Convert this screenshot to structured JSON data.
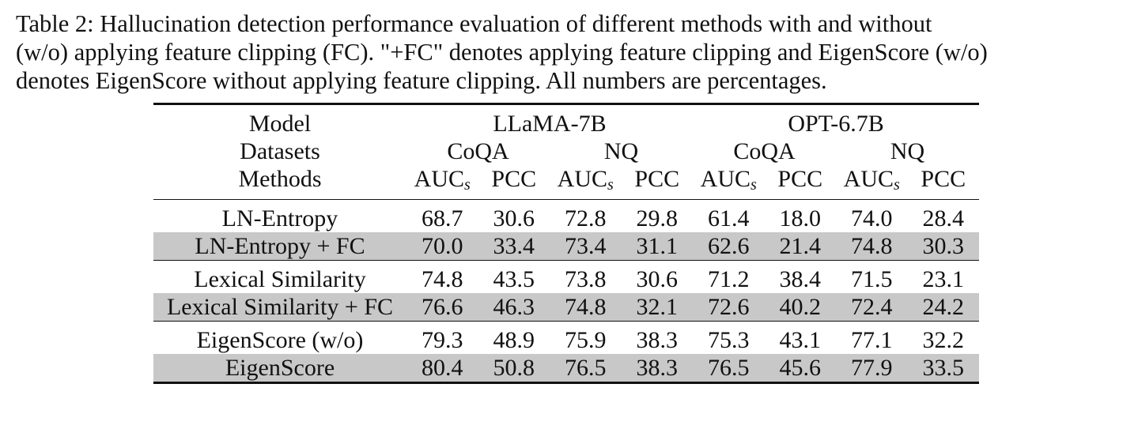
{
  "caption": {
    "line1": "Table 2:  Hallucination detection performance evaluation of different methods with and without",
    "line2": "(w/o) applying feature clipping (FC). \"+FC\" denotes applying feature clipping and EigenScore (w/o)",
    "line3": "denotes EigenScore without applying feature clipping. All numbers are percentages."
  },
  "header": {
    "model_label": "Model",
    "datasets_label": "Datasets",
    "methods_label": "Methods",
    "models": [
      "LLaMA-7B",
      "OPT-6.7B"
    ],
    "datasets": [
      "CoQA",
      "NQ",
      "CoQA",
      "NQ"
    ],
    "metric_auc": "AUC",
    "metric_auc_sub": "s",
    "metric_pcc": "PCC"
  },
  "rows": [
    {
      "method": "LN-Entropy",
      "shaded": false,
      "values": [
        "68.7",
        "30.6",
        "72.8",
        "29.8",
        "61.4",
        "18.0",
        "74.0",
        "28.4"
      ]
    },
    {
      "method": "LN-Entropy + FC",
      "shaded": true,
      "values": [
        "70.0",
        "33.4",
        "73.4",
        "31.1",
        "62.6",
        "21.4",
        "74.8",
        "30.3"
      ]
    },
    {
      "method": "Lexical Similarity",
      "shaded": false,
      "values": [
        "74.8",
        "43.5",
        "73.8",
        "30.6",
        "71.2",
        "38.4",
        "71.5",
        "23.1"
      ]
    },
    {
      "method": "Lexical Similarity + FC",
      "shaded": true,
      "values": [
        "76.6",
        "46.3",
        "74.8",
        "32.1",
        "72.6",
        "40.2",
        "72.4",
        "24.2"
      ]
    },
    {
      "method": "EigenScore (w/o)",
      "shaded": false,
      "values": [
        "79.3",
        "48.9",
        "75.9",
        "38.3",
        "75.3",
        "43.1",
        "77.1",
        "32.2"
      ]
    },
    {
      "method": "EigenScore",
      "shaded": true,
      "values": [
        "80.4",
        "50.8",
        "76.5",
        "38.3",
        "76.5",
        "45.6",
        "77.9",
        "33.5"
      ]
    }
  ]
}
